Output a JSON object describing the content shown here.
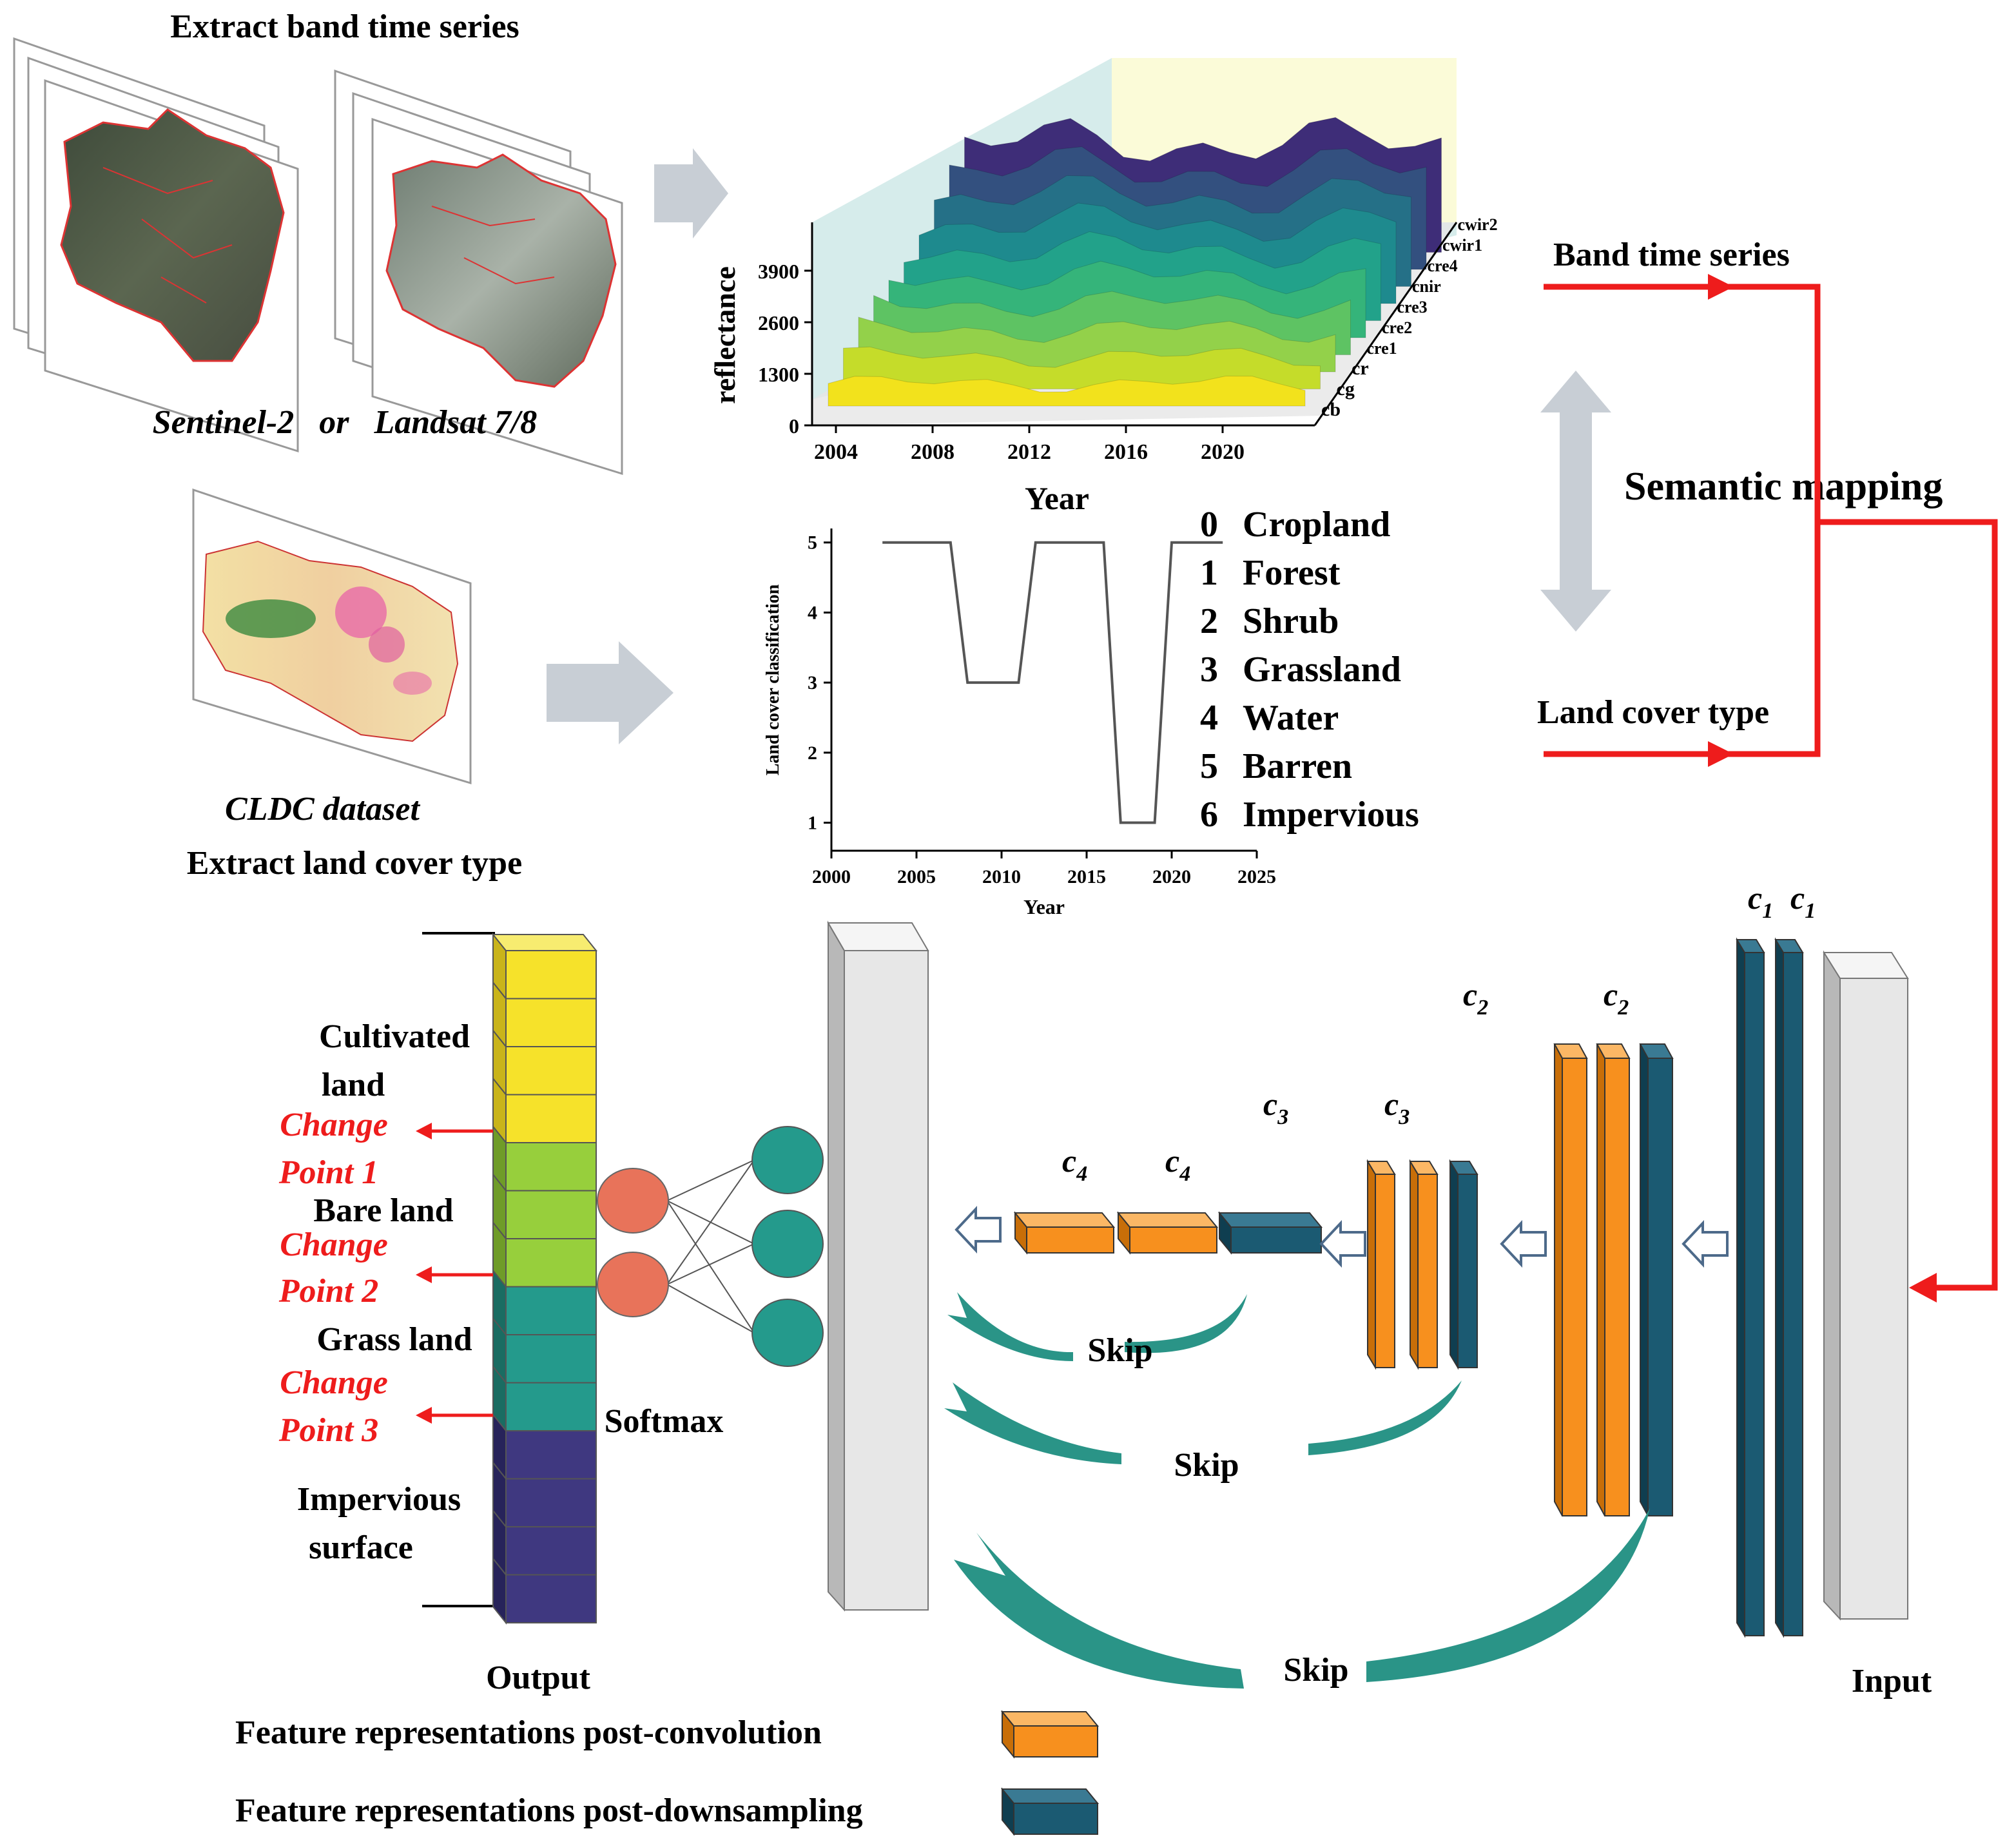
{
  "colors": {
    "red": "#ee1c1c",
    "orange": "#f7901e",
    "orange_dark": "#c96a00",
    "teal_dark": "#1b5a72",
    "teal": "#249a8c",
    "gray_arrow": "#c5ccd3",
    "yellow": "#f6e22a",
    "lime": "#97cf3c",
    "purple": "#3f3880",
    "softmax_out": "#e8735a"
  },
  "top": {
    "title": "Extract band time series",
    "sensors": "Sentinel-2   or   Landsat 7/8",
    "cldc": "CLDC dataset",
    "extract_lc": "Extract land cover type"
  },
  "mapping": {
    "band_ts": "Band time series",
    "semantic": "Semantic mapping",
    "lc_type": "Land cover type"
  },
  "ts3d": {
    "ylabel": "reflectance",
    "xlabel": "Year",
    "yticks": [
      "0",
      "1300",
      "2600",
      "3900"
    ],
    "xticks": [
      "2004",
      "2008",
      "2012",
      "2016",
      "2020"
    ],
    "bands": [
      "cb",
      "cg",
      "cr",
      "cre1",
      "cre2",
      "cre3",
      "cnir",
      "cre4",
      "cwir1",
      "cwir2"
    ]
  },
  "lcplot": {
    "ylabel": "Land cover classification",
    "xlabel": "Year",
    "xticks": [
      "2000",
      "2005",
      "2010",
      "2015",
      "2020",
      "2025"
    ],
    "yticks": [
      "1",
      "2",
      "3",
      "4",
      "5"
    ]
  },
  "chart_data": {
    "type": "line",
    "x": [
      2003,
      2007,
      2008,
      2011,
      2012,
      2016,
      2017,
      2019,
      2020,
      2023
    ],
    "y": [
      5,
      5,
      3,
      3,
      5,
      5,
      1,
      1,
      5,
      5
    ],
    "xlabel": "Year",
    "ylabel": "Land cover classification",
    "xlim": [
      2000,
      2025
    ],
    "ylim": [
      0.6,
      5.2
    ]
  },
  "legend_classes": [
    {
      "num": "0",
      "name": "Cropland"
    },
    {
      "num": "1",
      "name": "Forest"
    },
    {
      "num": "2",
      "name": "Shrub"
    },
    {
      "num": "3",
      "name": "Grassland"
    },
    {
      "num": "4",
      "name": "Water"
    },
    {
      "num": "5",
      "name": "Barren"
    },
    {
      "num": "6",
      "name": "Impervious"
    }
  ],
  "output": {
    "cultivated_1": "Cultivated",
    "cultivated_2": "land",
    "bare": "Bare land",
    "grass": "Grass land",
    "impervious_1": "Impervious",
    "impervious_2": "surface",
    "change": "Change",
    "point1": "Point 1",
    "point2": "Point 2",
    "point3": "Point 3",
    "label": "Output"
  },
  "network": {
    "softmax": "Softmax",
    "skip": "Skip",
    "input": "Input",
    "c": "c",
    "sub1": "1",
    "sub2": "2",
    "sub3": "3",
    "sub4": "4"
  },
  "legend": {
    "conv": "Feature representations post-convolution",
    "down": "Feature representations post-downsampling"
  }
}
